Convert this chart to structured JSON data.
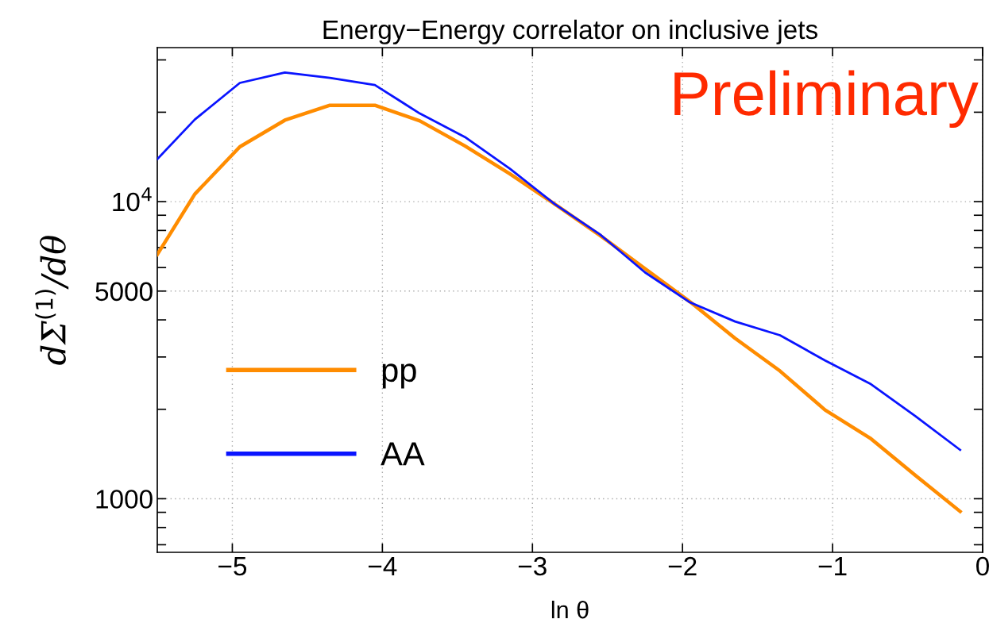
{
  "chart_data": {
    "type": "line",
    "title": "Energy−Energy correlator on inclusive jets",
    "xlabel": "ln θ",
    "ylabel": "dΣ$^{(1)}$/dθ",
    "annotations": [
      "Preliminary"
    ],
    "x": [
      -5.5,
      -5.25,
      -4.95,
      -4.65,
      -4.35,
      -4.05,
      -3.75,
      -3.45,
      -3.15,
      -2.85,
      -2.55,
      -2.25,
      -1.95,
      -1.65,
      -1.35,
      -1.05,
      -0.75,
      -0.45,
      -0.15
    ],
    "series": [
      {
        "name": "pp",
        "color": "#ff8c00",
        "values": [
          6640,
          10600,
          15300,
          18800,
          21100,
          21100,
          18700,
          15400,
          12400,
          9800,
          7700,
          5950,
          4600,
          3470,
          2690,
          1990,
          1600,
          1200,
          906
        ]
      },
      {
        "name": "AA",
        "color": "#0a14ff",
        "values": [
          13900,
          18900,
          25100,
          27200,
          26100,
          24700,
          19800,
          16500,
          12900,
          9800,
          7760,
          5780,
          4580,
          3950,
          3550,
          2920,
          2440,
          1900,
          1460
        ]
      }
    ],
    "log": "y",
    "grid": true,
    "legend": "bottom left",
    "marker": "none",
    "line_style": "solid",
    "xlim": [
      -5.5,
      0
    ],
    "ylim": [
      660,
      33000
    ],
    "xticks": [
      {
        "value": -5,
        "label": "−5"
      },
      {
        "value": -4,
        "label": "−4"
      },
      {
        "value": -3,
        "label": "−3"
      },
      {
        "value": -2,
        "label": "−2"
      },
      {
        "value": -1,
        "label": "−1"
      },
      {
        "value": 0,
        "label": "0"
      }
    ],
    "yticks": [
      {
        "value": 1000,
        "label": "1000"
      },
      {
        "value": 5000,
        "label": "5000"
      },
      {
        "value": 10000,
        "label": "10$^{4}$"
      },
      {
        "value": 700,
        "label": null
      },
      {
        "value": 800,
        "label": null
      },
      {
        "value": 900,
        "label": null
      },
      {
        "value": 2000,
        "label": null
      },
      {
        "value": 3000,
        "label": null
      },
      {
        "value": 4000,
        "label": null
      },
      {
        "value": 6000,
        "label": null
      },
      {
        "value": 7000,
        "label": null
      },
      {
        "value": 8000,
        "label": null
      },
      {
        "value": 9000,
        "label": null
      },
      {
        "value": 20000,
        "label": null
      },
      {
        "value": 30000,
        "label": null
      }
    ]
  }
}
